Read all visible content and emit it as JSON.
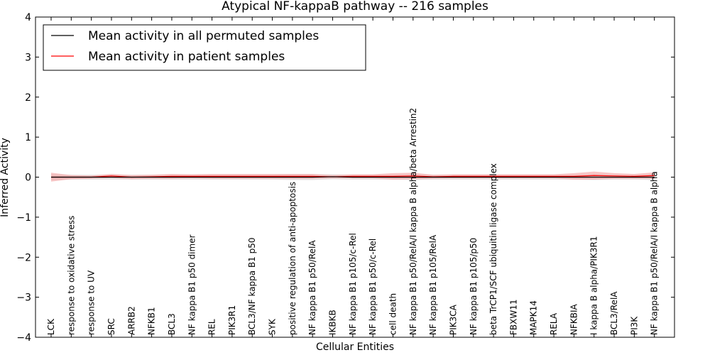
{
  "chart_data": {
    "type": "line",
    "title": "Atypical NF-kappaB pathway -- 216 samples",
    "xlabel": "Cellular Entities",
    "ylabel": "Inferred Activity",
    "ylim": [
      -4,
      4
    ],
    "yticks": [
      "−4",
      "−3",
      "−2",
      "−1",
      "0",
      "1",
      "2",
      "3",
      "4"
    ],
    "ytick_values": [
      -4,
      -3,
      -2,
      -1,
      0,
      1,
      2,
      3,
      4
    ],
    "grid": false,
    "legend_position": "top-left",
    "categories": [
      "LCK",
      "response to oxidative stress",
      "response to UV",
      "SRC",
      "ARRB2",
      "NFKB1",
      "BCL3",
      "NF kappa B1 p50 dimer",
      "REL",
      "PIK3R1",
      "BCL3/NF kappa B1 p50",
      "SYK",
      "positive regulation of anti-apoptosis",
      "NF kappa B1 p50/RelA",
      "IKBKB",
      "NF kappa B1 p105/c-Rel",
      "NF kappa B1 p50/c-Rel",
      "cell death",
      "NF kappa B1 p50/RelA/I kappa B alpha/beta Arrestin2",
      "NF kappa B1 p105/RelA",
      "PIK3CA",
      "NF kappa B1 p105/p50",
      "beta TrCP1/SCF ubiquitin ligase complex",
      "FBXW11",
      "MAPK14",
      "RELA",
      "NFKBIA",
      "I kappa B alpha/PIK3R1",
      "BCL3/RelA",
      "PI3K",
      "NF kappa B1 p50/RelA/I kappa B alpha"
    ],
    "series": [
      {
        "name": "Mean activity in all permuted samples",
        "color": "#000000",
        "values": [
          0.0,
          0.0,
          0.0,
          0.0,
          0.0,
          0.0,
          0.0,
          0.0,
          0.0,
          0.0,
          0.0,
          0.0,
          0.0,
          0.0,
          0.01,
          0.0,
          0.0,
          0.0,
          0.0,
          0.0,
          0.0,
          0.0,
          0.0,
          0.0,
          0.0,
          0.0,
          0.0,
          0.0,
          0.0,
          0.0,
          0.0
        ],
        "band": [
          0.07,
          0.06,
          0.06,
          0.06,
          0.06,
          0.06,
          0.06,
          0.06,
          0.06,
          0.06,
          0.06,
          0.06,
          0.07,
          0.07,
          0.06,
          0.06,
          0.06,
          0.06,
          0.07,
          0.06,
          0.06,
          0.06,
          0.06,
          0.06,
          0.06,
          0.06,
          0.06,
          0.07,
          0.06,
          0.06,
          0.07
        ]
      },
      {
        "name": "Mean activity in patient samples",
        "color": "#ff0000",
        "values": [
          0.0,
          0.0,
          0.0,
          0.03,
          0.0,
          0.01,
          0.02,
          0.02,
          0.02,
          0.02,
          0.02,
          0.02,
          0.02,
          0.02,
          0.01,
          0.02,
          0.02,
          0.02,
          0.03,
          0.01,
          0.02,
          0.02,
          0.02,
          0.02,
          0.02,
          0.02,
          0.02,
          0.04,
          0.03,
          0.02,
          0.04
        ],
        "band": [
          0.11,
          0.05,
          0.04,
          0.05,
          0.05,
          0.05,
          0.06,
          0.05,
          0.06,
          0.06,
          0.06,
          0.06,
          0.06,
          0.06,
          0.04,
          0.05,
          0.05,
          0.08,
          0.08,
          0.05,
          0.05,
          0.05,
          0.05,
          0.05,
          0.05,
          0.05,
          0.08,
          0.1,
          0.07,
          0.06,
          0.08
        ]
      }
    ],
    "band_colors": [
      "#d9d9d9",
      "#f4a0a0"
    ]
  }
}
